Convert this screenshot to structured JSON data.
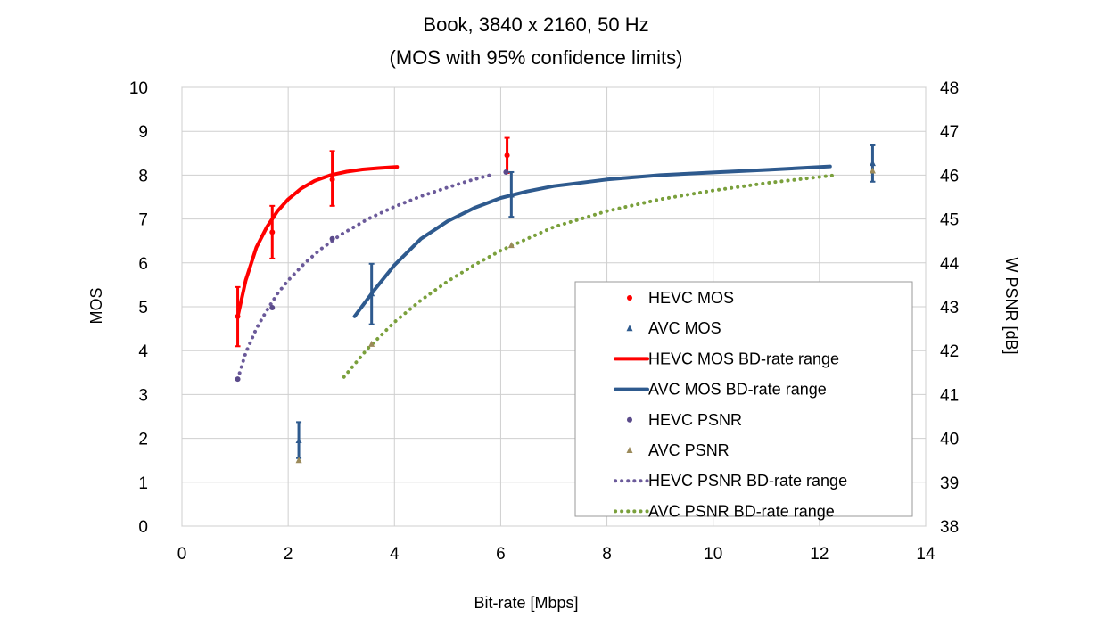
{
  "chart_data": {
    "type": "scatter",
    "title": [
      "Book, 3840 x 2160, 50 Hz",
      "(MOS with 95% confidence limits)"
    ],
    "xlabel": "Bit-rate [Mbps]",
    "ylabel": "MOS",
    "y2label": "W PSNR [dB]",
    "xlim": [
      0,
      14
    ],
    "ylim": [
      0,
      10
    ],
    "y2lim": [
      38,
      48
    ],
    "xticks": [
      "0",
      "2",
      "4",
      "6",
      "8",
      "10",
      "12",
      "14"
    ],
    "yticks": [
      "0",
      "1",
      "2",
      "3",
      "4",
      "5",
      "6",
      "7",
      "8",
      "9",
      "10"
    ],
    "y2ticks": [
      "38",
      "39",
      "40",
      "41",
      "42",
      "43",
      "44",
      "45",
      "46",
      "47",
      "48"
    ],
    "grid": true,
    "legend_position": "bottom-right",
    "series": [
      {
        "name": "HEVC MOS",
        "kind": "points",
        "axis": "left",
        "color": "#ff0000",
        "points": [
          {
            "x": 1.05,
            "y": 4.78,
            "lo": 4.1,
            "hi": 5.45
          },
          {
            "x": 1.7,
            "y": 6.7,
            "lo": 6.1,
            "hi": 7.3
          },
          {
            "x": 2.83,
            "y": 7.9,
            "lo": 7.3,
            "hi": 8.55
          },
          {
            "x": 6.12,
            "y": 8.45,
            "lo": 8.05,
            "hi": 8.85
          }
        ]
      },
      {
        "name": "AVC MOS",
        "kind": "points",
        "axis": "left",
        "color": "#2e5a8e",
        "points": [
          {
            "x": 2.2,
            "y": 1.95,
            "lo": 1.55,
            "hi": 2.37
          },
          {
            "x": 3.57,
            "y": 5.3,
            "lo": 4.6,
            "hi": 5.98
          },
          {
            "x": 6.2,
            "y": 7.55,
            "lo": 7.05,
            "hi": 8.07
          },
          {
            "x": 13.0,
            "y": 8.27,
            "lo": 7.85,
            "hi": 8.68
          }
        ]
      },
      {
        "name": "HEVC MOS BD-rate range",
        "kind": "solid",
        "axis": "left",
        "color": "#ff0000",
        "x": [
          1.05,
          1.2,
          1.4,
          1.6,
          1.8,
          2.0,
          2.25,
          2.5,
          2.8,
          3.1,
          3.4,
          3.7,
          4.05
        ],
        "y": [
          4.78,
          5.6,
          6.35,
          6.82,
          7.18,
          7.45,
          7.7,
          7.87,
          8.0,
          8.08,
          8.13,
          8.16,
          8.19
        ]
      },
      {
        "name": "AVC MOS BD-rate range",
        "kind": "solid",
        "axis": "left",
        "color": "#2e5a8e",
        "x": [
          3.25,
          3.6,
          4.0,
          4.5,
          5.0,
          5.5,
          6.0,
          6.5,
          7.0,
          8.0,
          9.0,
          10.0,
          11.0,
          12.2
        ],
        "y": [
          4.78,
          5.35,
          5.95,
          6.55,
          6.95,
          7.25,
          7.48,
          7.63,
          7.75,
          7.9,
          8.0,
          8.06,
          8.12,
          8.2
        ]
      },
      {
        "name": "HEVC PSNR",
        "kind": "points",
        "axis": "right",
        "color": "#5a4a8a",
        "points": [
          {
            "x": 1.05,
            "y": 41.35
          },
          {
            "x": 1.7,
            "y": 42.98
          },
          {
            "x": 2.83,
            "y": 44.55
          },
          {
            "x": 6.1,
            "y": 46.07
          }
        ]
      },
      {
        "name": "AVC PSNR",
        "kind": "points",
        "axis": "right",
        "color": "#9b8a5a",
        "points": [
          {
            "x": 2.2,
            "y": 39.5
          },
          {
            "x": 3.57,
            "y": 42.15
          },
          {
            "x": 6.2,
            "y": 44.4
          },
          {
            "x": 13.0,
            "y": 46.1
          }
        ]
      },
      {
        "name": "HEVC PSNR BD-rate range",
        "kind": "dotted",
        "axis": "right",
        "color": "#6b5a9a",
        "x": [
          1.05,
          1.2,
          1.4,
          1.6,
          1.8,
          2.0,
          2.3,
          2.6,
          3.0,
          3.5,
          4.0,
          4.5,
          5.0,
          5.4,
          5.8
        ],
        "y": [
          41.35,
          41.95,
          42.5,
          42.92,
          43.3,
          43.6,
          43.98,
          44.3,
          44.65,
          45.0,
          45.28,
          45.52,
          45.72,
          45.87,
          46.0
        ]
      },
      {
        "name": "AVC PSNR BD-rate range",
        "kind": "dotted",
        "axis": "right",
        "color": "#7aa03c",
        "x": [
          3.05,
          3.5,
          4.0,
          4.5,
          5.0,
          5.5,
          6.0,
          7.0,
          8.0,
          9.0,
          10.0,
          11.0,
          12.3
        ],
        "y": [
          41.4,
          42.05,
          42.65,
          43.15,
          43.58,
          43.95,
          44.28,
          44.82,
          45.18,
          45.45,
          45.65,
          45.82,
          46.0
        ]
      }
    ]
  }
}
